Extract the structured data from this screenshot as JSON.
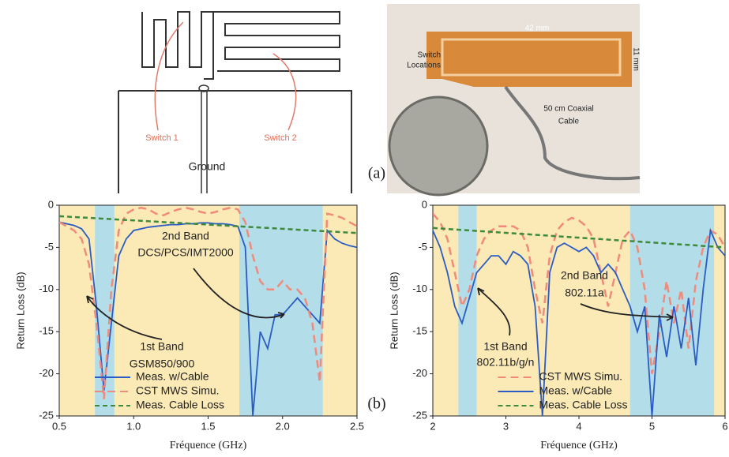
{
  "panel_a": {
    "label": "(a)",
    "diagram": {
      "switch_1": "Switch 1",
      "switch_2": "Switch 2",
      "ground": "Ground"
    },
    "photo": {
      "width_dim": "42 mm",
      "height_dim": "11 mm",
      "switch_line1": "Switch",
      "switch_line2": "Locations",
      "cable_line1": "50 cm Coaxial",
      "cable_line2": "Cable"
    }
  },
  "panel_b_label": "(b)",
  "chart_data": [
    {
      "type": "line",
      "xlabel": "Fréquence (GHz)",
      "ylabel": "Return Loss (dB)",
      "xlim": [
        0.5,
        2.5
      ],
      "xticks": [
        0.5,
        {
          "value": 1,
          "label": "1.0"
        },
        1.5,
        {
          "value": 2,
          "label": "2.0"
        },
        2.5
      ],
      "ylim": [
        -25,
        0
      ],
      "yticks": [
        -25,
        -20,
        -15,
        -10,
        -5,
        0
      ],
      "background_color": "#fbe9b6",
      "band_color": "#b3dde9",
      "bands": [
        [
          0.74,
          0.87
        ],
        [
          1.71,
          2.27
        ]
      ],
      "legend": "lower left",
      "annotations": [
        "2nd Band",
        "DCS/PCS/IMT2000",
        "1st Band",
        "GSM850/900"
      ],
      "x": [
        0.5,
        0.55,
        0.6,
        0.65,
        0.7,
        0.75,
        0.8,
        0.85,
        0.9,
        0.95,
        1.0,
        1.05,
        1.1,
        1.15,
        1.2,
        1.25,
        1.3,
        1.35,
        1.4,
        1.45,
        1.5,
        1.55,
        1.6,
        1.65,
        1.7,
        1.75,
        1.8,
        1.85,
        1.9,
        1.95,
        2.0,
        2.05,
        2.1,
        2.15,
        2.2,
        2.25,
        2.3,
        2.35,
        2.4,
        2.45,
        2.5
      ],
      "series": [
        {
          "name": "Meas. w/Cable",
          "color": "#2a5cc4",
          "dash": "none",
          "values": [
            -2,
            -2.2,
            -2.4,
            -2.8,
            -4,
            -12,
            -22,
            -14,
            -6,
            -4,
            -3,
            -2.8,
            -2.6,
            -2.5,
            -2.4,
            -2.3,
            -2.3,
            -2.2,
            -2.2,
            -2.1,
            -2.1,
            -2.2,
            -2.2,
            -2.3,
            -2.5,
            -5,
            -25,
            -15,
            -17,
            -13,
            -13,
            -12,
            -11,
            -12,
            -13,
            -14,
            -3,
            -4,
            -4.5,
            -4.8,
            -5
          ]
        },
        {
          "name": "CST MWS Simu.",
          "color": "#f08a7a",
          "dash": "10,6",
          "values": [
            -2,
            -2.5,
            -3,
            -4,
            -7,
            -14,
            -23,
            -10,
            -3,
            -1,
            -0.5,
            -0.3,
            -0.5,
            -1,
            -1.2,
            -0.8,
            -0.5,
            -0.3,
            -0.5,
            -0.8,
            -1,
            -0.8,
            -0.5,
            -0.3,
            -0.5,
            -2,
            -6,
            -9,
            -10,
            -10,
            -9,
            -10,
            -10,
            -11,
            -14,
            -21,
            -1,
            -1.2,
            -1.5,
            -2,
            -2.5
          ]
        },
        {
          "name": "Meas. Cable Loss",
          "color": "#3d8a3d",
          "dash": "6,4",
          "values": [
            -1.3,
            -1.35,
            -1.4,
            -1.45,
            -1.5,
            -1.55,
            -1.6,
            -1.65,
            -1.7,
            -1.75,
            -1.8,
            -1.85,
            -1.9,
            -1.95,
            -2.0,
            -2.05,
            -2.1,
            -2.15,
            -2.2,
            -2.25,
            -2.3,
            -2.35,
            -2.4,
            -2.45,
            -2.5,
            -2.55,
            -2.6,
            -2.65,
            -2.7,
            -2.75,
            -2.8,
            -2.85,
            -2.9,
            -2.95,
            -3.0,
            -3.05,
            -3.1,
            -3.15,
            -3.2,
            -3.25,
            -3.3
          ]
        }
      ]
    },
    {
      "type": "line",
      "xlabel": "Fréquence (GHz)",
      "ylabel": "Return Loss (dB)",
      "xlim": [
        2,
        6
      ],
      "xticks": [
        2,
        3,
        4,
        5,
        6
      ],
      "ylim": [
        -25,
        0
      ],
      "yticks": [
        -25,
        -20,
        -15,
        -10,
        -5,
        0
      ],
      "background_color": "#fbe9b6",
      "band_color": "#b3dde9",
      "bands": [
        [
          2.35,
          2.6
        ],
        [
          4.7,
          5.85
        ]
      ],
      "legend": "lower center",
      "annotations": [
        "1st Band",
        "802.11b/g/n",
        "2nd Band",
        "802.11a"
      ],
      "x": [
        2.0,
        2.1,
        2.2,
        2.3,
        2.4,
        2.5,
        2.6,
        2.7,
        2.8,
        2.9,
        3.0,
        3.1,
        3.2,
        3.3,
        3.4,
        3.5,
        3.6,
        3.7,
        3.8,
        3.9,
        4.0,
        4.1,
        4.2,
        4.3,
        4.4,
        4.5,
        4.6,
        4.7,
        4.8,
        4.9,
        5.0,
        5.1,
        5.2,
        5.3,
        5.4,
        5.5,
        5.6,
        5.7,
        5.8,
        5.9,
        6.0
      ],
      "series": [
        {
          "name": "CST MWS Simu.",
          "color": "#f08a7a",
          "dash": "10,6",
          "values": [
            -1,
            -2,
            -4,
            -8,
            -12,
            -10,
            -6,
            -4,
            -3,
            -2.5,
            -2.5,
            -2.5,
            -3,
            -5,
            -10,
            -14,
            -6,
            -3,
            -2,
            -1.5,
            -1.8,
            -2.5,
            -4,
            -8,
            -12,
            -8,
            -4,
            -3,
            -5,
            -10,
            -20,
            -15,
            -9,
            -14,
            -10,
            -17,
            -9,
            -5,
            -3,
            -3.5,
            -5
          ]
        },
        {
          "name": "Meas. w/Cable",
          "color": "#2a5cc4",
          "dash": "none",
          "values": [
            -3,
            -5,
            -8,
            -12,
            -14,
            -11,
            -8,
            -7,
            -6,
            -6,
            -7,
            -5.5,
            -6,
            -7,
            -12,
            -25,
            -8,
            -5,
            -4.5,
            -5,
            -5.5,
            -5,
            -6,
            -8,
            -7,
            -8,
            -10,
            -12,
            -15,
            -12,
            -25,
            -13,
            -18,
            -12,
            -17,
            -11,
            -19,
            -10,
            -3,
            -5,
            -6
          ]
        },
        {
          "name": "Meas. Cable Loss",
          "color": "#3d8a3d",
          "dash": "6,4",
          "values": [
            -2.7,
            -2.76,
            -2.82,
            -2.87,
            -2.93,
            -2.99,
            -3.05,
            -3.1,
            -3.16,
            -3.22,
            -3.28,
            -3.33,
            -3.39,
            -3.45,
            -3.51,
            -3.56,
            -3.62,
            -3.68,
            -3.74,
            -3.79,
            -3.85,
            -3.91,
            -3.97,
            -4.02,
            -4.08,
            -4.14,
            -4.2,
            -4.25,
            -4.31,
            -4.37,
            -4.43,
            -4.48,
            -4.54,
            -4.6,
            -4.66,
            -4.71,
            -4.77,
            -4.83,
            -4.89,
            -4.94,
            -5.0
          ]
        }
      ]
    }
  ]
}
